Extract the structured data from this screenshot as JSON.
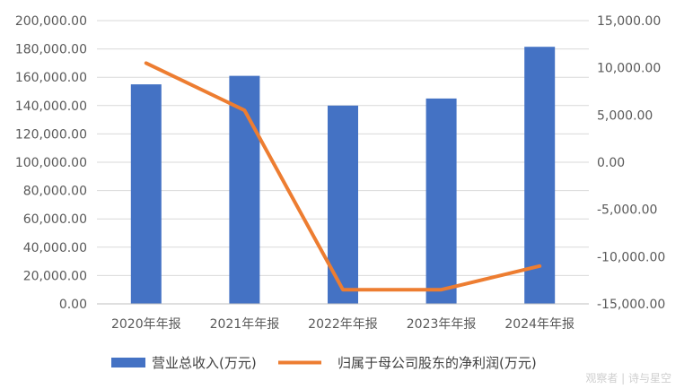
{
  "chart_data": {
    "type": "bar+line",
    "categories": [
      "2020年年报",
      "2021年年报",
      "2022年年报",
      "2023年年报",
      "2024年年报"
    ],
    "series": [
      {
        "name": "营业总收入(万元)",
        "type": "bar",
        "axis": "left",
        "values": [
          155000,
          161000,
          140000,
          145000,
          181500
        ]
      },
      {
        "name": "归属于母公司股东的净利润(万元)",
        "type": "line",
        "axis": "right",
        "values": [
          10500,
          5500,
          -13500,
          -13500,
          -11000
        ]
      }
    ],
    "y_left": {
      "min": 0,
      "max": 200000,
      "step": 20000,
      "tick_labels": [
        "0.00",
        "20,000.00",
        "40,000.00",
        "60,000.00",
        "80,000.00",
        "100,000.00",
        "120,000.00",
        "140,000.00",
        "160,000.00",
        "180,000.00",
        "200,000.00"
      ]
    },
    "y_right": {
      "min": -15000,
      "max": 15000,
      "step": 5000,
      "tick_labels": [
        "-15,000.00",
        "-10,000.00",
        "-5,000.00",
        "0.00",
        "5,000.00",
        "10,000.00",
        "15,000.00"
      ]
    },
    "grid": true,
    "legend_position": "bottom",
    "colors": {
      "bar": "#4472C4",
      "line": "#ED7D31",
      "grid": "#D9D9D9",
      "axis": "#BFBFBF"
    }
  },
  "watermark": "观察者 | 诗与星空"
}
